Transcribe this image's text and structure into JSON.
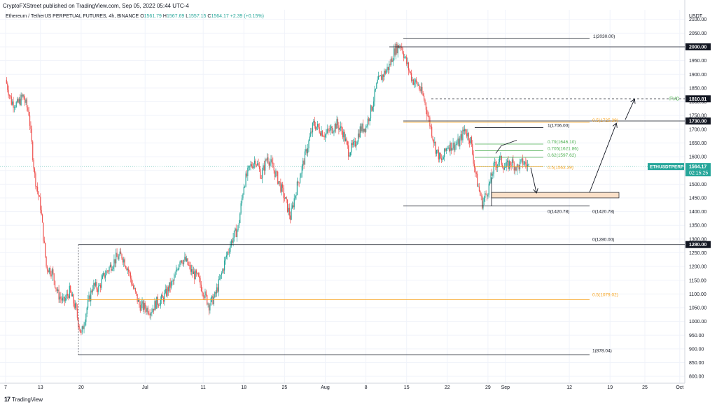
{
  "header": {
    "publisher": "CryptoFXStreet published on TradingView.com, Sep 05, 2022 05:44 UTC-4"
  },
  "symbol": {
    "name": "Ethereum / TetherUS PERPETUAL FUTURES, 4h, BINANCE",
    "o_label": "O",
    "o": "1561.79",
    "h_label": "H",
    "h": "1567.69",
    "l_label": "L",
    "l": "1557.15",
    "c_label": "C",
    "c": "1564.17",
    "change": "+2.39 (+0.15%)"
  },
  "footer": {
    "logo_text": "TradingView"
  },
  "colors": {
    "up": "#26a69a",
    "down": "#ef5350",
    "fib_green": "#4caf50",
    "fib_orange": "#f7a21b",
    "line": "#131722"
  },
  "chart_data": {
    "type": "candlestick",
    "currency": "USDT",
    "ylim": [
      775,
      2135
    ],
    "y_ticks": [
      800,
      850,
      900,
      950,
      1000,
      1050,
      1100,
      1150,
      1200,
      1250,
      1300,
      1350,
      1400,
      1450,
      1500,
      1550,
      1600,
      1650,
      1700,
      1750,
      1800,
      1850,
      1900,
      1950,
      2000,
      2050,
      2100
    ],
    "x_ticks": [
      {
        "label": "7",
        "day": 0
      },
      {
        "label": "13",
        "day": 6
      },
      {
        "label": "20",
        "day": 13
      },
      {
        "label": "Jul",
        "day": 24
      },
      {
        "label": "11",
        "day": 34
      },
      {
        "label": "18",
        "day": 41
      },
      {
        "label": "25",
        "day": 48
      },
      {
        "label": "Aug",
        "day": 55
      },
      {
        "label": "8",
        "day": 62
      },
      {
        "label": "15",
        "day": 69
      },
      {
        "label": "22",
        "day": 76
      },
      {
        "label": "29",
        "day": 83
      },
      {
        "label": "Sep",
        "day": 86
      },
      {
        "label": "12",
        "day": 97
      },
      {
        "label": "19",
        "day": 104
      },
      {
        "label": "25",
        "day": 110
      },
      {
        "label": "Oct",
        "day": 116
      }
    ],
    "price_path": [
      [
        0,
        1880
      ],
      [
        1,
        1800
      ],
      [
        2,
        1790
      ],
      [
        3,
        1820
      ],
      [
        4,
        1760
      ],
      [
        5,
        1530
      ],
      [
        6,
        1420
      ],
      [
        7,
        1200
      ],
      [
        8,
        1180
      ],
      [
        9,
        1100
      ],
      [
        10,
        1070
      ],
      [
        11,
        1110
      ],
      [
        12,
        1050
      ],
      [
        13,
        950
      ],
      [
        14,
        1050
      ],
      [
        15,
        1130
      ],
      [
        16,
        1120
      ],
      [
        17,
        1170
      ],
      [
        18,
        1200
      ],
      [
        19,
        1230
      ],
      [
        20,
        1240
      ],
      [
        21,
        1195
      ],
      [
        22,
        1120
      ],
      [
        23,
        1060
      ],
      [
        24,
        1050
      ],
      [
        25,
        1040
      ],
      [
        26,
        1070
      ],
      [
        27,
        1080
      ],
      [
        28,
        1120
      ],
      [
        29,
        1150
      ],
      [
        30,
        1230
      ],
      [
        31,
        1220
      ],
      [
        32,
        1180
      ],
      [
        33,
        1160
      ],
      [
        34,
        1110
      ],
      [
        35,
        1060
      ],
      [
        36,
        1090
      ],
      [
        37,
        1160
      ],
      [
        38,
        1240
      ],
      [
        39,
        1300
      ],
      [
        40,
        1340
      ],
      [
        41,
        1500
      ],
      [
        42,
        1560
      ],
      [
        43,
        1590
      ],
      [
        44,
        1530
      ],
      [
        45,
        1600
      ],
      [
        46,
        1560
      ],
      [
        47,
        1510
      ],
      [
        48,
        1450
      ],
      [
        49,
        1380
      ],
      [
        50,
        1480
      ],
      [
        51,
        1560
      ],
      [
        52,
        1640
      ],
      [
        53,
        1720
      ],
      [
        54,
        1700
      ],
      [
        55,
        1680
      ],
      [
        56,
        1700
      ],
      [
        57,
        1720
      ],
      [
        58,
        1690
      ],
      [
        59,
        1620
      ],
      [
        60,
        1640
      ],
      [
        61,
        1700
      ],
      [
        62,
        1710
      ],
      [
        63,
        1780
      ],
      [
        64,
        1870
      ],
      [
        65,
        1900
      ],
      [
        66,
        1930
      ],
      [
        67,
        1990
      ],
      [
        68,
        2010
      ],
      [
        69,
        1940
      ],
      [
        70,
        1880
      ],
      [
        71,
        1860
      ],
      [
        72,
        1810
      ],
      [
        73,
        1720
      ],
      [
        74,
        1630
      ],
      [
        75,
        1580
      ],
      [
        76,
        1640
      ],
      [
        77,
        1640
      ],
      [
        78,
        1650
      ],
      [
        79,
        1700
      ],
      [
        80,
        1660
      ],
      [
        81,
        1520
      ],
      [
        82,
        1430
      ],
      [
        83,
        1480
      ],
      [
        84,
        1560
      ],
      [
        85,
        1590
      ],
      [
        86,
        1560
      ],
      [
        87,
        1580
      ],
      [
        88,
        1560
      ],
      [
        89,
        1580
      ],
      [
        90,
        1564
      ]
    ],
    "fib_levels": [
      {
        "text": "1(2030.00)",
        "value": 2030,
        "color": "#131722"
      },
      {
        "text": "1(1706.00)",
        "value": 1706,
        "color": "#131722"
      },
      {
        "text": "0.79(1646.10)",
        "value": 1646.1,
        "color": "#4caf50"
      },
      {
        "text": "0.705(1621.86)",
        "value": 1621.86,
        "color": "#4caf50"
      },
      {
        "text": "0.62(1597.62)",
        "value": 1597.62,
        "color": "#4caf50"
      },
      {
        "text": "0.5(1563.39)",
        "value": 1563.39,
        "color": "#f7a21b"
      },
      {
        "text": "0(1420.78)",
        "value": 1420.78,
        "color": "#131722"
      },
      {
        "text": "0(1420.78)",
        "value": 1420.78,
        "color": "#131722"
      },
      {
        "text": "0.5(1725.39)",
        "value": 1725.39,
        "color": "#f7a21b"
      },
      {
        "text": "0(1280.00)",
        "value": 1280,
        "color": "#131722"
      },
      {
        "text": "0.5(1079.02)",
        "value": 1079.02,
        "color": "#f7a21b"
      },
      {
        "text": "1(878.04)",
        "value": 878.04,
        "color": "#131722"
      }
    ],
    "price_tags": [
      {
        "text": "2000.00",
        "value": 2000
      },
      {
        "text": "1810.81",
        "value": 1810.81
      },
      {
        "text": "1730.00",
        "value": 1730
      },
      {
        "text": "1280.00",
        "value": 1280
      }
    ],
    "fvg_label": "FVG",
    "current": {
      "symbol": "ETHUSDTPERP",
      "price": "1564.17",
      "countdown": "02:15:25",
      "value": 1564.17
    }
  }
}
